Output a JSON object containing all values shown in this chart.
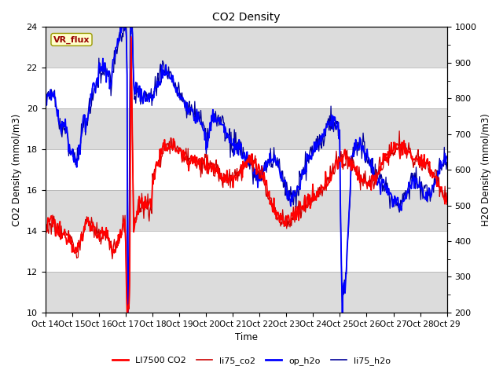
{
  "title": "CO2 Density",
  "xlabel": "Time",
  "ylabel_left": "CO2 Density (mmol/m3)",
  "ylabel_right": "H2O Density (mmol/m3)",
  "ylim_left": [
    10,
    24
  ],
  "ylim_right": [
    200,
    1000
  ],
  "xtick_labels": [
    "Oct 14",
    "Oct 15",
    "Oct 16",
    "Oct 17",
    "Oct 18",
    "Oct 19",
    "Oct 20",
    "Oct 21",
    "Oct 22",
    "Oct 23",
    "Oct 24",
    "Oct 25",
    "Oct 26",
    "Oct 27",
    "Oct 28",
    "Oct 29"
  ],
  "legend_entries": [
    "LI7500 CO2",
    "li75_co2",
    "op_h2o",
    "li75_h2o"
  ],
  "legend_colors_co2": [
    "#ff0000",
    "#cc0000"
  ],
  "legend_colors_h2o": [
    "#0000ff",
    "#000099"
  ],
  "vr_flux_label": "VR_flux",
  "vr_flux_color": "#990000",
  "vr_flux_bg": "#ffffcc",
  "vr_flux_edge": "#999900",
  "band_color_gray": "#dcdcdc",
  "band_color_white": "#f0f0f0",
  "axes_bg": "#f0f0f0",
  "n_points": 600,
  "figsize": [
    6.4,
    4.8
  ],
  "dpi": 100
}
